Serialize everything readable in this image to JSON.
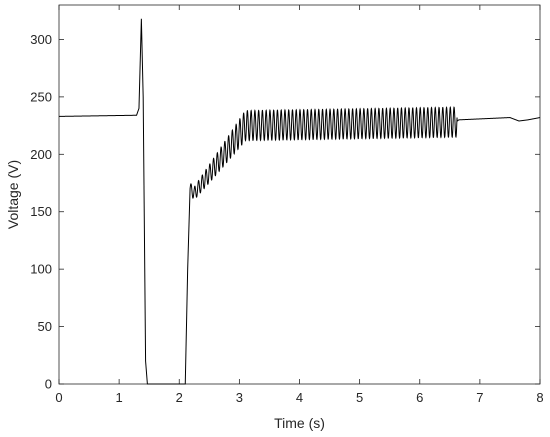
{
  "chart_data": {
    "type": "line",
    "title": "",
    "xlabel": "Time (s)",
    "ylabel": "Voltage (V)",
    "xlim": [
      0,
      8
    ],
    "ylim": [
      0,
      330
    ],
    "xticks": [
      0,
      1,
      2,
      3,
      4,
      5,
      6,
      7,
      8
    ],
    "yticks": [
      0,
      50,
      100,
      150,
      200,
      250,
      300
    ],
    "grid": false,
    "series": [
      {
        "color": "#000000",
        "description_points": [
          [
            0.0,
            233
          ],
          [
            1.29,
            234
          ],
          [
            1.33,
            240
          ],
          [
            1.37,
            318
          ],
          [
            1.4,
            250
          ],
          [
            1.44,
            20
          ],
          [
            1.47,
            0
          ],
          [
            2.1,
            0
          ],
          [
            2.14,
            100
          ],
          [
            2.18,
            170
          ],
          [
            2.25,
            166
          ],
          [
            2.6,
            190
          ],
          [
            3.1,
            225
          ],
          [
            6.6,
            228
          ],
          [
            6.65,
            230
          ],
          [
            7.5,
            232
          ],
          [
            7.65,
            229
          ],
          [
            7.8,
            230
          ],
          [
            8.0,
            232
          ]
        ],
        "oscillation": {
          "start_s": 2.18,
          "end_s": 6.62,
          "frequency_hz": 16,
          "amplitude_v": [
            5,
            13
          ],
          "center_v": 228
        }
      }
    ]
  }
}
